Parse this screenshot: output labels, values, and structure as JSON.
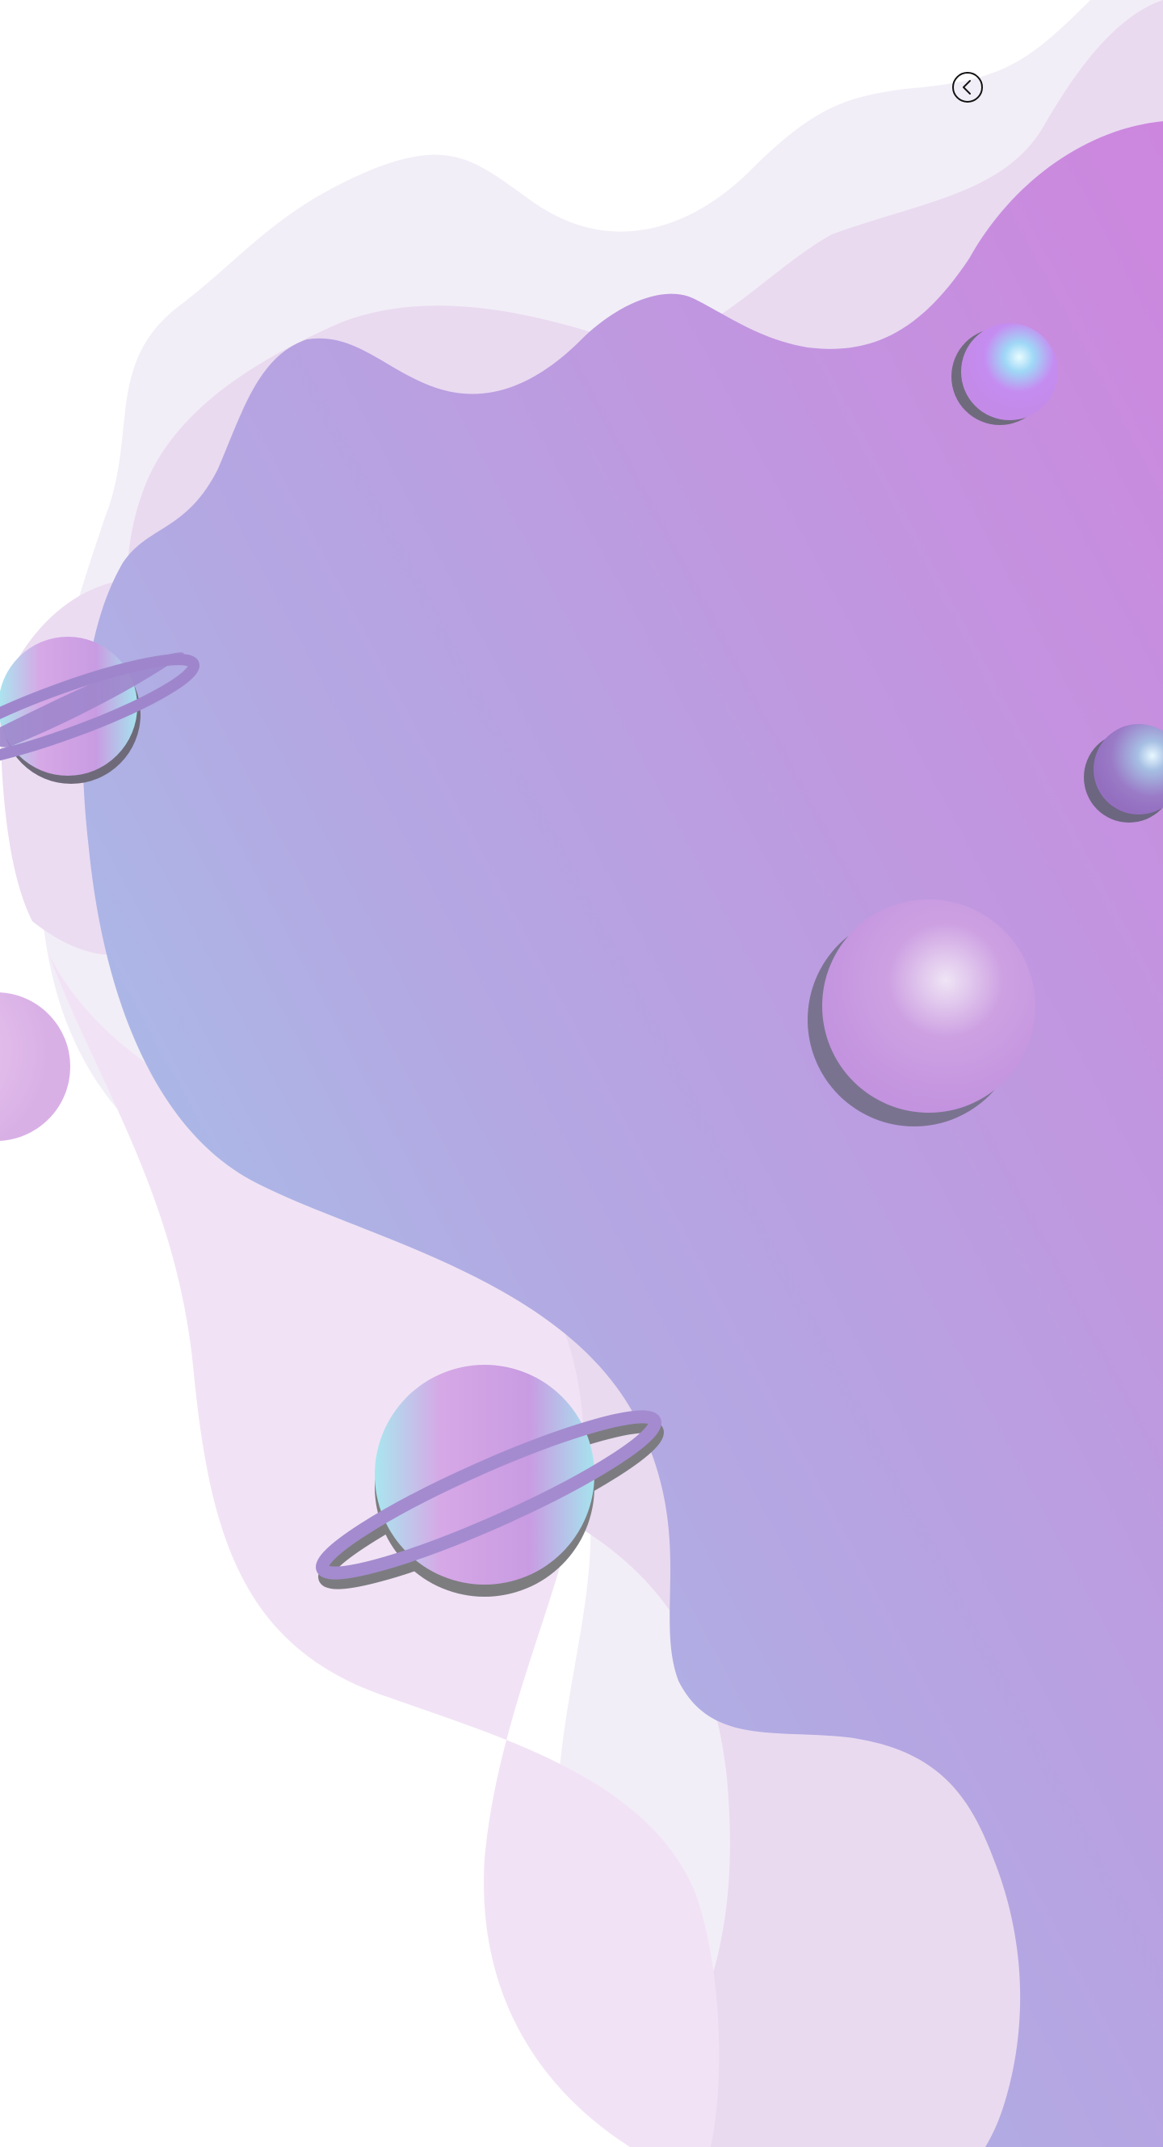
{
  "page": {
    "title": ""
  },
  "navigation": {
    "back_button_icon": "chevron-left-circle-icon"
  },
  "colors": {
    "background": "#ffffff",
    "wave_light": "#f2eef7",
    "wave_mid": "#e9daf0",
    "wave_pink": "#f1e3f5",
    "blob_purple": "#c98ae0",
    "blob_blue": "#a1d2ee",
    "planet_purple": "#c48fe0",
    "planet_cyan": "#a8e6ee",
    "ring_purple": "#9f86cc",
    "shadow": "#6b6b78"
  },
  "decorations": [
    {
      "name": "small-planet-top",
      "kind": "planet"
    },
    {
      "name": "ringed-planet-left",
      "kind": "ringed-planet"
    },
    {
      "name": "dark-planet-right",
      "kind": "planet"
    },
    {
      "name": "large-planet-center",
      "kind": "planet"
    },
    {
      "name": "partial-planet-left",
      "kind": "planet"
    },
    {
      "name": "ringed-planet-bottom",
      "kind": "ringed-planet"
    }
  ]
}
